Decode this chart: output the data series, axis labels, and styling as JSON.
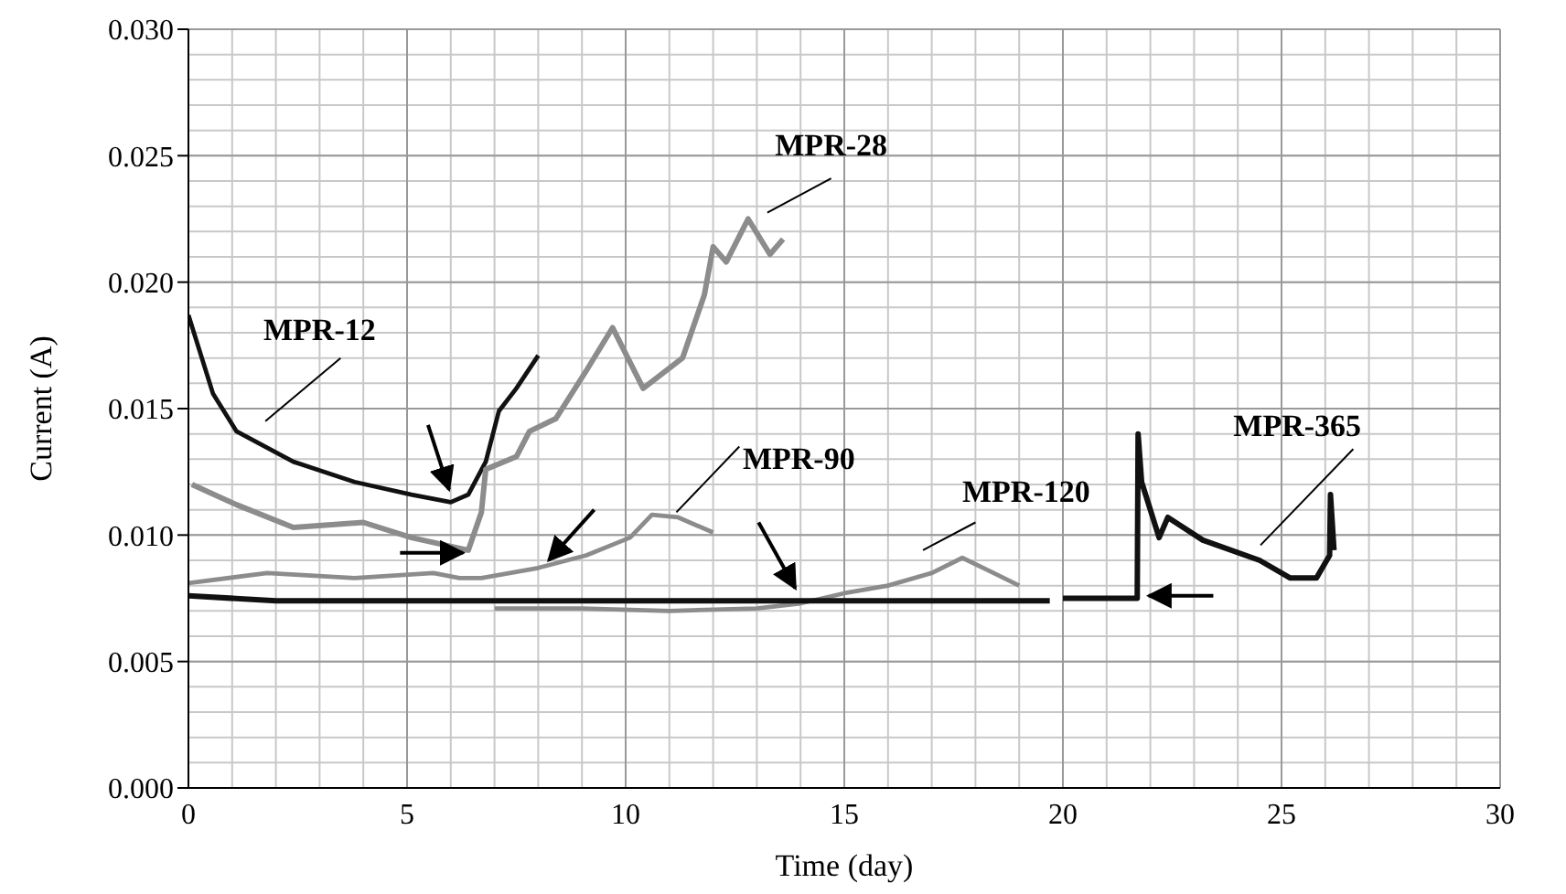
{
  "chart_data": {
    "type": "line",
    "xlabel": "Time (day)",
    "ylabel": "Current (A)",
    "xlim": [
      0,
      30
    ],
    "xticks": [
      0,
      5,
      10,
      15,
      20,
      25,
      30
    ],
    "ylim": [
      0,
      0.03
    ],
    "yticks": [
      {
        "value": 0,
        "label": "0.000"
      },
      {
        "value": 0.005,
        "label": "0.005"
      },
      {
        "value": 0.01,
        "label": "0.010"
      },
      {
        "value": 0.015,
        "label": "0.015"
      },
      {
        "value": 0.02,
        "label": "0.020"
      },
      {
        "value": 0.025,
        "label": "0.025"
      },
      {
        "value": 0.03,
        "label": "0.030"
      }
    ],
    "grid": true,
    "marker": "none",
    "line_style": "solid",
    "series": [
      {
        "name": "MPR-120",
        "color": "#8c8c8c",
        "x": [
          7,
          9,
          11,
          13,
          14,
          15,
          16,
          17,
          17.7,
          18.3,
          19
        ],
        "values": [
          0.0071,
          0.0071,
          0.007,
          0.0071,
          0.0073,
          0.0077,
          0.008,
          0.0085,
          0.0091,
          0.0086,
          0.008
        ]
      },
      {
        "name": "MPR-365",
        "color": "#111111",
        "x": [
          0,
          2,
          5,
          10,
          15,
          19.7,
          19.8,
          20,
          21.7,
          21.72,
          21.8,
          22.2,
          22.4,
          23.2,
          24.5,
          25.2,
          25.8,
          26.1,
          26.12,
          26.2
        ],
        "values": [
          0.0076,
          0.0074,
          0.0074,
          0.0074,
          0.0074,
          0.0074,
          null,
          0.0075,
          0.0075,
          0.014,
          0.0121,
          0.0099,
          0.0107,
          0.0098,
          0.009,
          0.0083,
          0.0083,
          0.0092,
          0.0116,
          0.0094
        ]
      },
      {
        "name": "MPR-12",
        "color": "#111111",
        "x": [
          0,
          0.56,
          1.1,
          2.4,
          3.8,
          5.1,
          6,
          6.4,
          6.8,
          7.1,
          7.5,
          8
        ],
        "values": [
          0.0187,
          0.0156,
          0.0141,
          0.0129,
          0.0121,
          0.0116,
          0.0113,
          0.0116,
          0.0129,
          0.0149,
          0.0158,
          0.0171
        ]
      },
      {
        "name": "MPR-28",
        "color": "#8c8c8c",
        "x": [
          0.08,
          1.1,
          2.4,
          4,
          5.1,
          6.4,
          6.7,
          6.8,
          7.5,
          7.8,
          8.4,
          9.1,
          9.7,
          10.4,
          11.3,
          11.8,
          12,
          12.3,
          12.8,
          13.3,
          13.6
        ],
        "values": [
          0.012,
          0.0112,
          0.0103,
          0.0105,
          0.0099,
          0.0094,
          0.0109,
          0.0126,
          0.0131,
          0.0141,
          0.0146,
          0.0165,
          0.0182,
          0.0158,
          0.017,
          0.0195,
          0.0214,
          0.0208,
          0.0225,
          0.0211,
          0.0217
        ]
      },
      {
        "name": "MPR-90",
        "color": "#8c8c8c",
        "x": [
          0,
          1.8,
          3.8,
          5.6,
          6.2,
          6.7,
          8,
          9.1,
          10.1,
          10.6,
          11.2,
          12
        ],
        "values": [
          0.0081,
          0.0085,
          0.0083,
          0.0085,
          0.0083,
          0.0083,
          0.0087,
          0.0092,
          0.0099,
          0.0108,
          0.0107,
          0.0101
        ]
      }
    ]
  }
}
